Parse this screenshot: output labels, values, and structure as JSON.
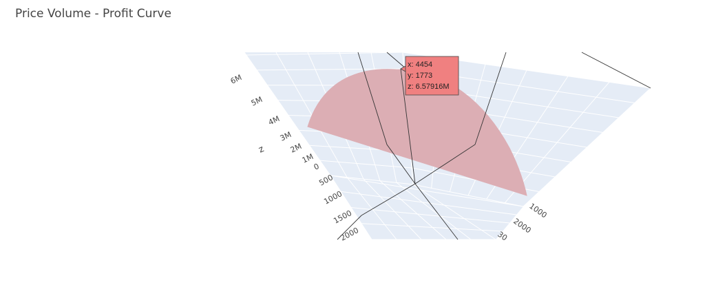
{
  "chart_data": {
    "type": "surface",
    "title": "Price Volume - Profit Curve",
    "z_axis": {
      "title": "z",
      "tick_labels": [
        "0",
        "1M",
        "2M",
        "3M",
        "4M",
        "5M",
        "6M"
      ]
    },
    "y_axis": {
      "tick_labels": [
        "500",
        "1000",
        "1500",
        "2000"
      ]
    },
    "x_axis": {
      "tick_labels": [
        "1000",
        "2000",
        "30"
      ]
    },
    "hover": {
      "x": "x: 4454",
      "y": "y: 1773",
      "z": "z: 6.57916M"
    },
    "colors": {
      "scene_bg": "#e5ecf6",
      "grid": "#ffffff",
      "surface": "#dcaeb4",
      "hover_bg": "#f08080",
      "spike": "#333333"
    }
  }
}
